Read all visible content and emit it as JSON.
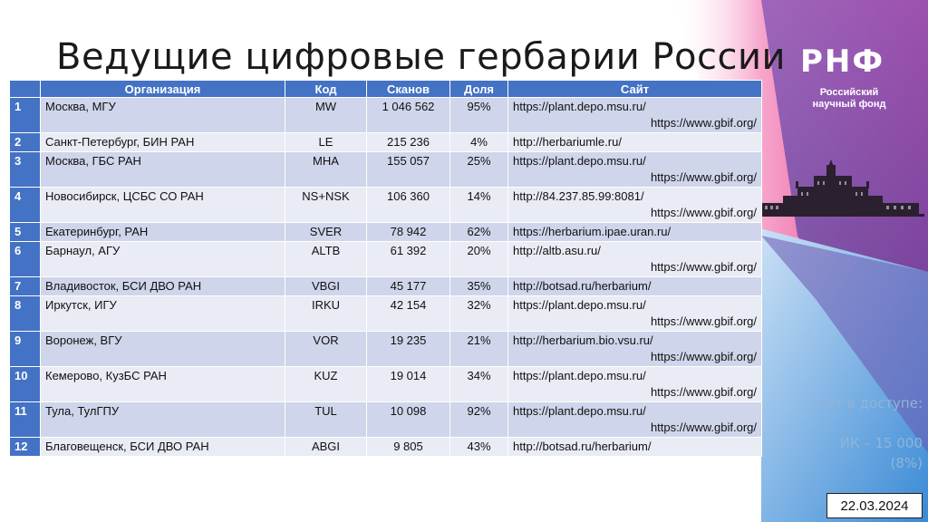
{
  "slide": {
    "title": "Ведущие цифровые гербарии России",
    "date": "22.03.2024"
  },
  "logo": {
    "name": "РНФ",
    "subtitle_line1": "Российский",
    "subtitle_line2": "научный фонд"
  },
  "side_note": {
    "line1": "Нет в доступе:",
    "line2": "",
    "line3": "ИК – 15 000",
    "line4": "(8%)"
  },
  "colors": {
    "header": "#4472c4",
    "row_odd": "#cfd5ea",
    "row_even": "#e9ebf5",
    "accent_pink": "#e8197a",
    "accent_blue": "#4a8fd8"
  },
  "table": {
    "headers": [
      "",
      "Организация",
      "Код",
      "Сканов",
      "Доля",
      "Сайт"
    ],
    "rows": [
      {
        "n": "1",
        "org": "Москва, МГУ",
        "code": "MW",
        "scans": "1 046 562",
        "share": "95%",
        "site1": "https://plant.depo.msu.ru/",
        "site2": "https://www.gbif.org/"
      },
      {
        "n": "2",
        "org": "Санкт-Петербург, БИН РАН",
        "code": "LE",
        "scans": "215 236",
        "share": "4%",
        "site1": "http://herbariumle.ru/",
        "site2": ""
      },
      {
        "n": "3",
        "org": "Москва, ГБС РАН",
        "code": "MHA",
        "scans": "155 057",
        "share": "25%",
        "site1": "https://plant.depo.msu.ru/",
        "site2": "https://www.gbif.org/"
      },
      {
        "n": "4",
        "org": "Новосибирск, ЦСБС СО РАН",
        "code": "NS+NSK",
        "scans": "106 360",
        "share": "14%",
        "site1": "http://84.237.85.99:8081/",
        "site2": "https://www.gbif.org/"
      },
      {
        "n": "5",
        "org": "Екатеринбург, РАН",
        "code": "SVER",
        "scans": "78 942",
        "share": "62%",
        "site1": "https://herbarium.ipae.uran.ru/",
        "site2": ""
      },
      {
        "n": "6",
        "org": "Барнаул, АГУ",
        "code": "ALTB",
        "scans": "61 392",
        "share": "20%",
        "site1": "http://altb.asu.ru/",
        "site2": "https://www.gbif.org/"
      },
      {
        "n": "7",
        "org": "Владивосток, БСИ ДВО РАН",
        "code": "VBGI",
        "scans": "45 177",
        "share": "35%",
        "site1": "http://botsad.ru/herbarium/",
        "site2": ""
      },
      {
        "n": "8",
        "org": "Иркутск, ИГУ",
        "code": "IRKU",
        "scans": "42 154",
        "share": "32%",
        "site1": "https://plant.depo.msu.ru/",
        "site2": "https://www.gbif.org/"
      },
      {
        "n": "9",
        "org": "Воронеж, ВГУ",
        "code": "VOR",
        "scans": "19 235",
        "share": "21%",
        "site1": "http://herbarium.bio.vsu.ru/",
        "site2": "https://www.gbif.org/"
      },
      {
        "n": "10",
        "org": "Кемерово, КузБС РАН",
        "code": "KUZ",
        "scans": "19 014",
        "share": "34%",
        "site1": "https://plant.depo.msu.ru/",
        "site2": "https://www.gbif.org/"
      },
      {
        "n": "11",
        "org": "Тула, ТулГПУ",
        "code": "TUL",
        "scans": "10 098",
        "share": "92%",
        "site1": "https://plant.depo.msu.ru/",
        "site2": "https://www.gbif.org/"
      },
      {
        "n": "12",
        "org": "Благовещенск, БСИ ДВО РАН",
        "code": "ABGI",
        "scans": "9 805",
        "share": "43%",
        "site1": "http://botsad.ru/herbarium/",
        "site2": ""
      }
    ]
  }
}
